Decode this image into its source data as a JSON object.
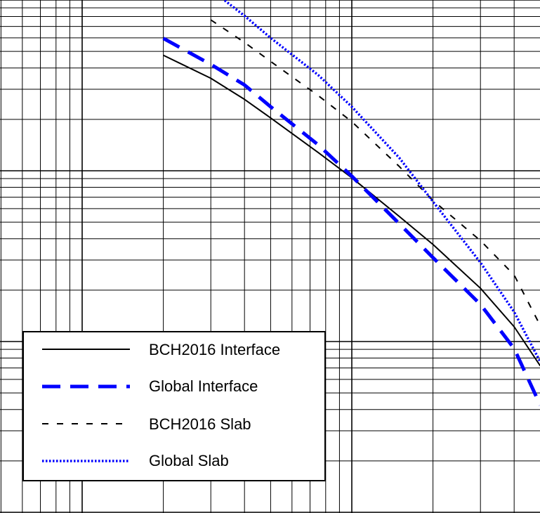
{
  "chart_data": {
    "type": "line",
    "title": "",
    "xlabel": "",
    "ylabel": "",
    "xscale": "log",
    "yscale": "log",
    "grid": true,
    "legend_position": "bottom-left",
    "series": [
      {
        "name": "BCH2016 Interface",
        "color": "#000000",
        "style": "solid",
        "points": [
          [
            0.2,
            0.0475
          ],
          [
            0.3,
            0.0348
          ],
          [
            0.4,
            0.0262
          ],
          [
            0.5,
            0.0204
          ],
          [
            0.75,
            0.0128
          ],
          [
            1.0,
            0.0091
          ],
          [
            1.5,
            0.0054
          ],
          [
            2.0,
            0.0037
          ],
          [
            3.0,
            0.00205
          ],
          [
            4.0,
            0.00122
          ],
          [
            5.0,
            0.00072
          ]
        ]
      },
      {
        "name": "Global Interface",
        "color": "#0000ff",
        "style": "dashed",
        "points": [
          [
            0.2,
            0.0596
          ],
          [
            0.3,
            0.042
          ],
          [
            0.4,
            0.0318
          ],
          [
            0.5,
            0.0237
          ],
          [
            0.75,
            0.0142
          ],
          [
            1.0,
            0.0093
          ],
          [
            1.5,
            0.0049
          ],
          [
            2.0,
            0.0031
          ],
          [
            3.0,
            0.00165
          ],
          [
            4.0,
            0.00091
          ],
          [
            5.0,
            0.000424
          ]
        ]
      },
      {
        "name": "BCH2016 Slab",
        "color": "#000000",
        "style": "short-dashed",
        "points": [
          [
            0.3,
            0.0765
          ],
          [
            0.4,
            0.0564
          ],
          [
            0.5,
            0.0437
          ],
          [
            0.75,
            0.0276
          ],
          [
            1.0,
            0.0194
          ],
          [
            1.5,
            0.0106
          ],
          [
            2.0,
            0.0067
          ],
          [
            3.0,
            0.0039
          ],
          [
            4.0,
            0.00245
          ],
          [
            5.0,
            0.00124
          ]
        ]
      },
      {
        "name": "Global Slab",
        "color": "#0000ff",
        "style": "dotted",
        "points": [
          [
            0.3,
            0.115
          ],
          [
            0.4,
            0.0808
          ],
          [
            0.5,
            0.06
          ],
          [
            0.75,
            0.0364
          ],
          [
            1.0,
            0.0237
          ],
          [
            1.5,
            0.0119
          ],
          [
            2.0,
            0.0066
          ],
          [
            3.0,
            0.0029
          ],
          [
            4.0,
            0.00149
          ],
          [
            5.0,
            0.00076
          ]
        ]
      }
    ],
    "legend": [
      {
        "label": "BCH2016 Interface"
      },
      {
        "label": "Global Interface"
      },
      {
        "label": "BCH2016 Slab"
      },
      {
        "label": "Global Slab"
      }
    ]
  }
}
